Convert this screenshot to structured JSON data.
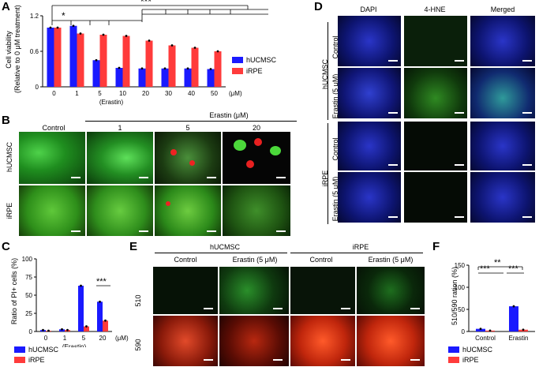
{
  "panels": {
    "A": {
      "label": "A",
      "ylabel1": "Cell viability",
      "ylabel2": "(Relative to 0 μM treatment)",
      "ticks_y": [
        "0",
        "0.6",
        "1.2"
      ],
      "x_unit": "(μM)",
      "x_title": "(Erastin)",
      "sig": [
        "*",
        "***"
      ],
      "pair_sig": "***",
      "legend": [
        {
          "name": "hUCMSC",
          "color": "#1a1aff"
        },
        {
          "name": "iRPE",
          "color": "#ff3b3b"
        }
      ]
    },
    "B": {
      "label": "B",
      "header": "Erastin (μM)",
      "columns": [
        "Control",
        "1",
        "5",
        "20"
      ],
      "rows": [
        "hUCMSC",
        "iRPE"
      ]
    },
    "C": {
      "label": "C",
      "ylabel": "Ratio of PI+ cells (%)",
      "ticks_y": [
        "0",
        "25",
        "50",
        "75",
        "100"
      ],
      "x_unit": "(μM)",
      "x_title": "(Erastin)",
      "sig": "***",
      "legend": [
        {
          "name": "hUCMSC",
          "color": "#1a1aff"
        },
        {
          "name": "iRPE",
          "color": "#ff3b3b"
        }
      ]
    },
    "D": {
      "label": "D",
      "columns": [
        "DAPI",
        "4-HNE",
        "Merged"
      ],
      "groups": [
        {
          "name": "hUCMSC",
          "rows": [
            "Control",
            "Erastin (5 μM)"
          ]
        },
        {
          "name": "iRPE",
          "rows": [
            "Control",
            "Erastin (5 μM)"
          ]
        }
      ]
    },
    "E": {
      "label": "E",
      "groups": [
        {
          "name": "hUCMSC",
          "cols": [
            "Control",
            "Erastin (5 μM)"
          ]
        },
        {
          "name": "iRPE",
          "cols": [
            "Control",
            "Erastin (5 μM)"
          ]
        }
      ],
      "rows": [
        "510",
        "590"
      ]
    },
    "F": {
      "label": "F",
      "ylabel": "510/590 ration (%)",
      "ticks_y": [
        "0",
        "50",
        "100",
        "150"
      ],
      "categories": [
        "Control",
        "Erastin"
      ],
      "sig_top": "**",
      "sig_left": "***",
      "sig_right": "***",
      "legend": [
        {
          "name": "hUCMSC",
          "color": "#1a1aff"
        },
        {
          "name": "iRPE",
          "color": "#ff3b3b"
        }
      ]
    }
  },
  "chart_data": [
    {
      "panel": "A",
      "type": "bar",
      "categories": [
        "0",
        "1",
        "5",
        "10",
        "20",
        "30",
        "40",
        "50"
      ],
      "series": [
        {
          "name": "hUCMSC",
          "values": [
            1.0,
            1.03,
            0.45,
            0.32,
            0.31,
            0.31,
            0.31,
            0.3
          ]
        },
        {
          "name": "iRPE",
          "values": [
            1.0,
            0.9,
            0.88,
            0.86,
            0.78,
            0.7,
            0.66,
            0.6
          ]
        }
      ],
      "ylim": [
        0,
        1.2
      ]
    },
    {
      "panel": "C",
      "type": "bar",
      "categories": [
        "0",
        "1",
        "5",
        "20"
      ],
      "series": [
        {
          "name": "hUCMSC",
          "values": [
            2,
            3,
            63,
            41
          ]
        },
        {
          "name": "iRPE",
          "values": [
            1,
            2,
            7,
            15
          ]
        }
      ],
      "ylim": [
        0,
        100
      ]
    },
    {
      "panel": "F",
      "type": "bar",
      "categories": [
        "Control",
        "Erastin"
      ],
      "series": [
        {
          "name": "hUCMSC",
          "values": [
            6,
            57
          ]
        },
        {
          "name": "iRPE",
          "values": [
            2,
            4
          ]
        }
      ],
      "ylim": [
        0,
        150
      ]
    }
  ]
}
